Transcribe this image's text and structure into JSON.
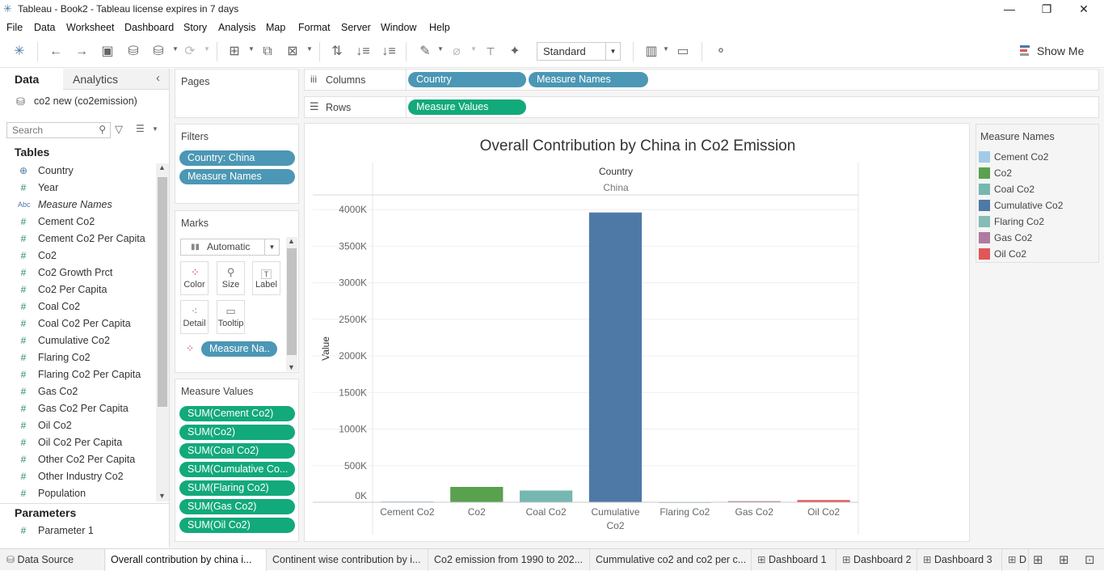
{
  "window": {
    "title": "Tableau - Book2 - Tableau license expires in 7 days",
    "minimize": "—",
    "restore": "❐",
    "close": "✕"
  },
  "menu": [
    "File",
    "Data",
    "Worksheet",
    "Dashboard",
    "Story",
    "Analysis",
    "Map",
    "Format",
    "Server",
    "Window",
    "Help"
  ],
  "toolbar": {
    "fit_value": "Standard",
    "show_me_label": "Show Me"
  },
  "datapane": {
    "tab_data": "Data",
    "tab_analytics": "Analytics",
    "datasource": "co2 new (co2emission)",
    "search_placeholder": "Search",
    "tables_header": "Tables",
    "fields": [
      {
        "icon": "globe-icon",
        "label": "Country"
      },
      {
        "icon": "hash-icon",
        "label": "Year"
      },
      {
        "icon": "abc-icon",
        "label": "Measure Names"
      },
      {
        "icon": "hash-icon",
        "label": "Cement Co2"
      },
      {
        "icon": "hash-icon",
        "label": "Cement Co2 Per Capita"
      },
      {
        "icon": "hash-icon",
        "label": "Co2"
      },
      {
        "icon": "hash-icon",
        "label": "Co2 Growth Prct"
      },
      {
        "icon": "hash-icon",
        "label": "Co2 Per Capita"
      },
      {
        "icon": "hash-icon",
        "label": "Coal Co2"
      },
      {
        "icon": "hash-icon",
        "label": "Coal Co2 Per Capita"
      },
      {
        "icon": "hash-icon",
        "label": "Cumulative Co2"
      },
      {
        "icon": "hash-icon",
        "label": "Flaring Co2"
      },
      {
        "icon": "hash-icon",
        "label": "Flaring Co2 Per Capita"
      },
      {
        "icon": "hash-icon",
        "label": "Gas Co2"
      },
      {
        "icon": "hash-icon",
        "label": "Gas Co2 Per Capita"
      },
      {
        "icon": "hash-icon",
        "label": "Oil Co2"
      },
      {
        "icon": "hash-icon",
        "label": "Oil Co2 Per Capita"
      },
      {
        "icon": "hash-icon",
        "label": "Other Co2 Per Capita"
      },
      {
        "icon": "hash-icon",
        "label": "Other Industry Co2"
      },
      {
        "icon": "hash-icon",
        "label": "Population"
      }
    ],
    "parameters_header": "Parameters",
    "parameters": [
      "Parameter 1"
    ]
  },
  "shelves": {
    "pages_title": "Pages",
    "columns_label": "Columns",
    "rows_label": "Rows",
    "columns_pills": [
      "Country",
      "Measure Names"
    ],
    "rows_pills": [
      "Measure Values"
    ],
    "filters_title": "Filters",
    "filters": [
      "Country: China",
      "Measure Names"
    ],
    "marks_title": "Marks",
    "mark_type": "Automatic",
    "mark_buttons": [
      "Color",
      "Size",
      "Label",
      "Detail",
      "Tooltip"
    ],
    "marks_color_pill": "Measure Na..",
    "measure_values_title": "Measure Values",
    "measure_values": [
      "SUM(Cement Co2)",
      "SUM(Co2)",
      "SUM(Coal Co2)",
      "SUM(Cumulative Co...",
      "SUM(Flaring Co2)",
      "SUM(Gas Co2)",
      "SUM(Oil Co2)"
    ]
  },
  "legend": {
    "title": "Measure Names",
    "items": [
      {
        "label": "Cement Co2",
        "color": "#a0cbe8"
      },
      {
        "label": "Co2",
        "color": "#59a14f"
      },
      {
        "label": "Coal Co2",
        "color": "#76b7b2"
      },
      {
        "label": "Cumulative Co2",
        "color": "#4e79a7"
      },
      {
        "label": "Flaring Co2",
        "color": "#86bcb6"
      },
      {
        "label": "Gas Co2",
        "color": "#b07aa1"
      },
      {
        "label": "Oil Co2",
        "color": "#e15759"
      }
    ]
  },
  "chart_data": {
    "type": "bar",
    "title": "Overall Contribution by China in Co2 Emission",
    "header_label": "Country",
    "header_value": "China",
    "ylabel": "Value",
    "ylim": [
      0,
      4200000
    ],
    "yticks": [
      0,
      500000,
      1000000,
      1500000,
      2000000,
      2500000,
      3000000,
      3500000,
      4000000
    ],
    "ytick_labels": [
      "0K",
      "500K",
      "1000K",
      "1500K",
      "2000K",
      "2500K",
      "3000K",
      "3500K",
      "4000K"
    ],
    "categories": [
      "Cement Co2",
      "Co2",
      "Coal Co2",
      "Cumulative Co2",
      "Flaring Co2",
      "Gas Co2",
      "Oil Co2"
    ],
    "category_lines": [
      [
        "Cement Co2"
      ],
      [
        "Co2"
      ],
      [
        "Coal Co2"
      ],
      [
        "Cumulative",
        "Co2"
      ],
      [
        "Flaring Co2"
      ],
      [
        "Gas Co2"
      ],
      [
        "Oil Co2"
      ]
    ],
    "values": [
      12000,
      210000,
      160000,
      3960000,
      2000,
      15000,
      30000
    ],
    "colors": [
      "#a0cbe8",
      "#59a14f",
      "#76b7b2",
      "#4e79a7",
      "#86bcb6",
      "#b07aa1",
      "#e15759"
    ],
    "grid": true
  },
  "tabs": {
    "data_source": "Data Source",
    "sheets": [
      "Overall contribution by china i...",
      "Continent wise contribution by i...",
      "Co2 emission from 1990 to 202...",
      "Cummulative co2 and co2 per c..."
    ],
    "dashboards": [
      "Dashboard 1",
      "Dashboard 2",
      "Dashboard 3",
      "D"
    ]
  }
}
